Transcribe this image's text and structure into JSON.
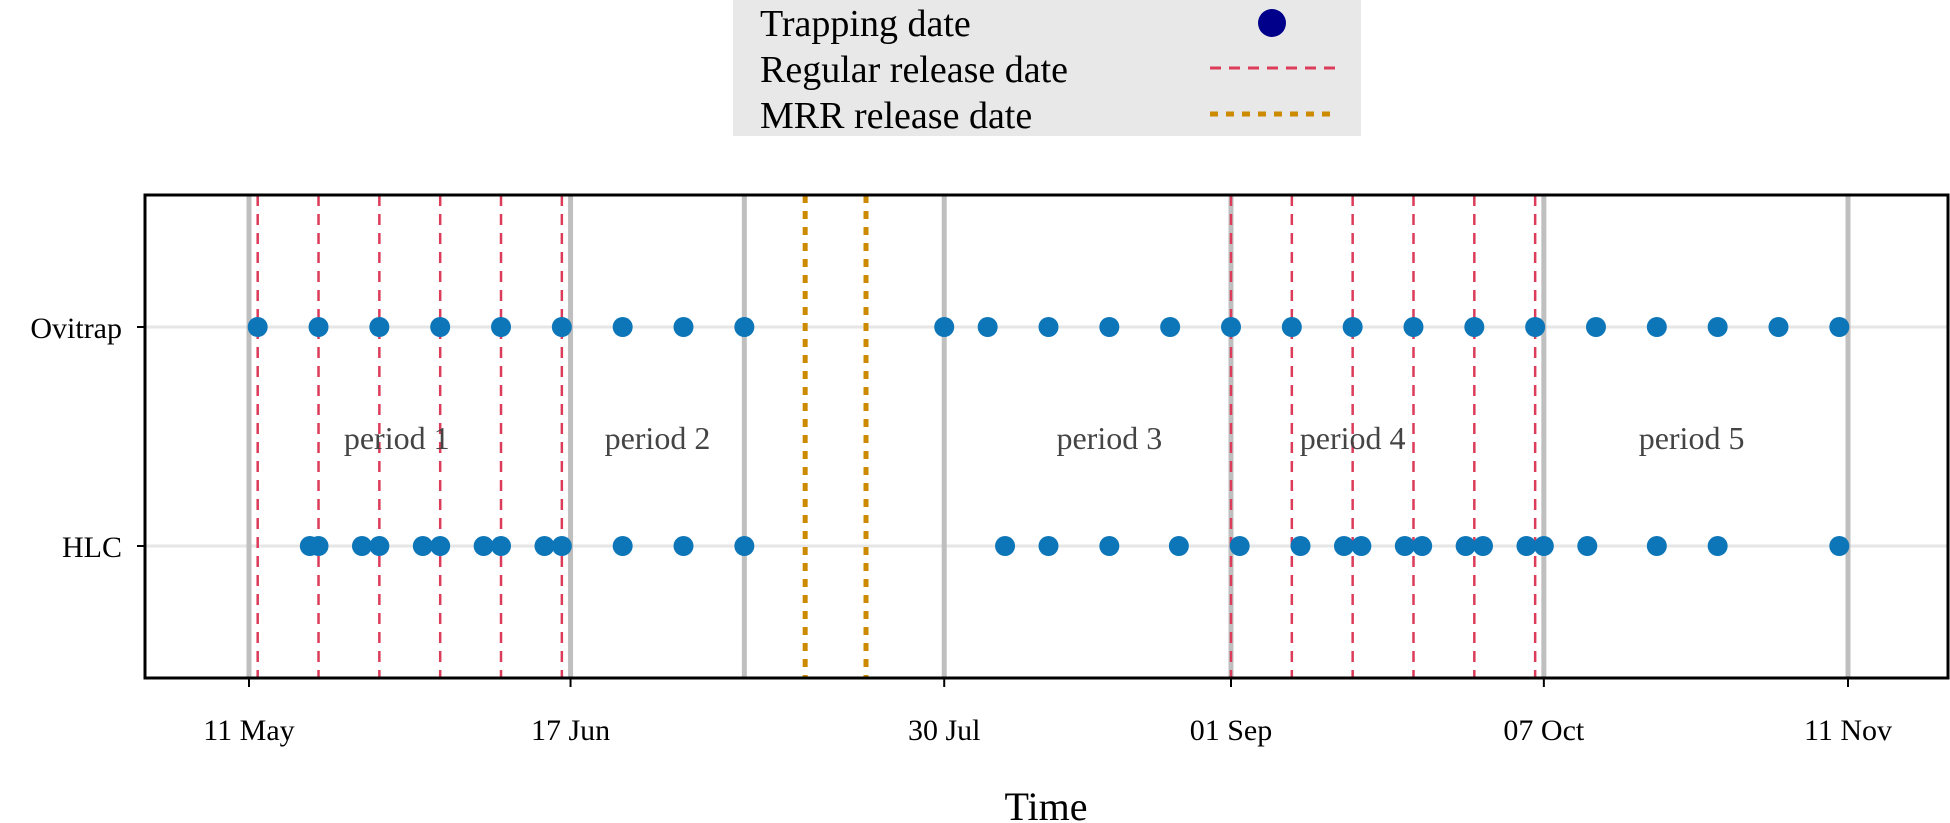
{
  "chart_data": {
    "type": "scatter",
    "xlabel": "Time",
    "x_ticks": [
      "11 May",
      "17 Jun",
      "30 Jul",
      "01 Sep",
      "07 Oct",
      "11 Nov"
    ],
    "categories": [
      "Ovitrap",
      "HLC"
    ],
    "legend": {
      "placement": "top",
      "entries": [
        {
          "label": "Trapping date",
          "style": "point",
          "color": "#00008B"
        },
        {
          "label": "Regular release date",
          "style": "dashed",
          "color": "#DC3C5A"
        },
        {
          "label": "MRR release date",
          "style": "dotted",
          "color": "#CC8A00"
        }
      ]
    },
    "periods": [
      {
        "label": "period 1",
        "x": "2023-05-28"
      },
      {
        "label": "period 2",
        "x": "2023-06-27"
      },
      {
        "label": "period 3",
        "x": "2023-08-18"
      },
      {
        "label": "period 4",
        "x": "2023-09-15"
      },
      {
        "label": "period 5",
        "x": "2023-10-24"
      }
    ],
    "period_boundaries": [
      "2023-05-11",
      "2023-06-17",
      "2023-07-07",
      "2023-07-30",
      "2023-09-01",
      "2023-10-07",
      "2023-11-11"
    ],
    "regular_release_dates": [
      "2023-05-12",
      "2023-05-19",
      "2023-05-26",
      "2023-06-02",
      "2023-06-09",
      "2023-06-16",
      "2023-09-01",
      "2023-09-08",
      "2023-09-15",
      "2023-09-22",
      "2023-09-29",
      "2023-10-06"
    ],
    "mrr_release_dates": [
      "2023-07-14",
      "2023-07-21"
    ],
    "series": [
      {
        "name": "Ovitrap",
        "x": [
          "2023-05-12",
          "2023-05-19",
          "2023-05-26",
          "2023-06-02",
          "2023-06-09",
          "2023-06-16",
          "2023-06-23",
          "2023-06-30",
          "2023-07-07",
          "2023-07-30",
          "2023-08-04",
          "2023-08-11",
          "2023-08-18",
          "2023-08-25",
          "2023-09-01",
          "2023-09-08",
          "2023-09-15",
          "2023-09-22",
          "2023-09-29",
          "2023-10-06",
          "2023-10-13",
          "2023-10-20",
          "2023-10-27",
          "2023-11-03",
          "2023-11-10"
        ]
      },
      {
        "name": "HLC",
        "x": [
          "2023-05-18",
          "2023-05-19",
          "2023-05-24",
          "2023-05-26",
          "2023-05-31",
          "2023-06-02",
          "2023-06-07",
          "2023-06-09",
          "2023-06-14",
          "2023-06-16",
          "2023-06-23",
          "2023-06-30",
          "2023-07-07",
          "2023-08-06",
          "2023-08-11",
          "2023-08-18",
          "2023-08-26",
          "2023-09-02",
          "2023-09-09",
          "2023-09-14",
          "2023-09-16",
          "2023-09-21",
          "2023-09-23",
          "2023-09-28",
          "2023-09-30",
          "2023-10-05",
          "2023-10-07",
          "2023-10-12",
          "2023-10-20",
          "2023-10-27",
          "2023-11-10"
        ]
      }
    ],
    "colors": {
      "trap_point": "#0D76B8",
      "legend_point": "#00008B",
      "regular": "#DC3C5A",
      "mrr": "#CC8A00",
      "boundary": "#BFBFBF",
      "gridline": "#E6E6E6",
      "legend_bg": "#E8E8E8"
    }
  }
}
